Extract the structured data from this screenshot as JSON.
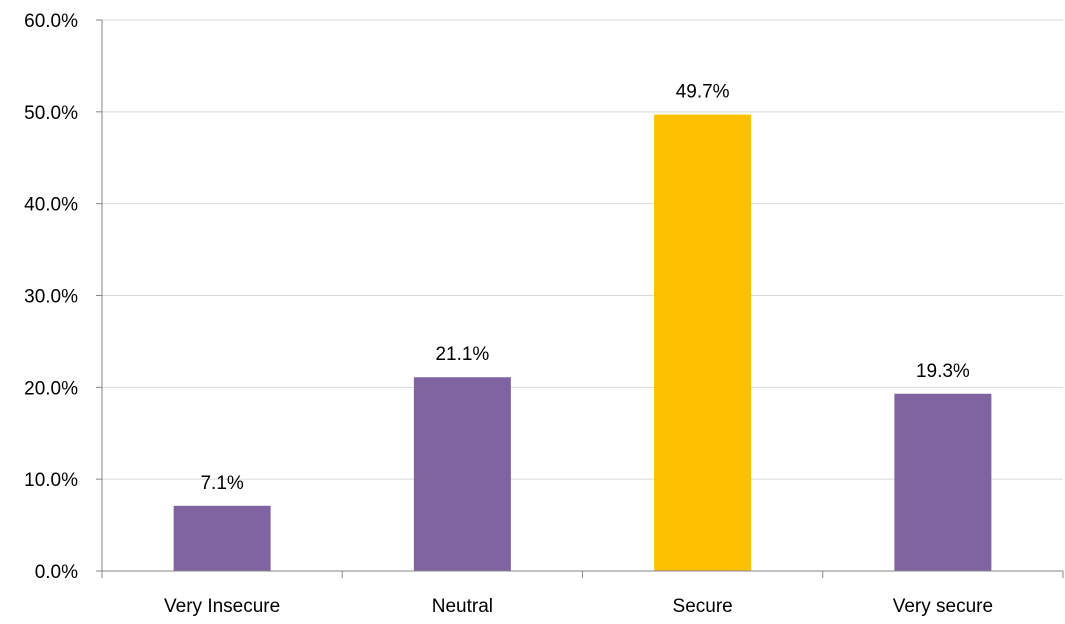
{
  "chart_data": {
    "type": "bar",
    "title": "",
    "xlabel": "",
    "ylabel": "",
    "categories": [
      "Very Insecure",
      "Neutral",
      "Secure",
      "Very secure"
    ],
    "values": [
      7.1,
      21.1,
      49.7,
      19.3
    ],
    "data_labels": [
      "7.1%",
      "21.1%",
      "49.7%",
      "19.3%"
    ],
    "y_ticks": [
      0,
      10,
      20,
      30,
      40,
      50,
      60
    ],
    "y_tick_labels": [
      "0.0%",
      "10.0%",
      "20.0%",
      "30.0%",
      "40.0%",
      "50.0%",
      "60.0%"
    ],
    "ylim": [
      0,
      60
    ],
    "grid": true,
    "legend": "none",
    "colors": {
      "default_bar": "#8064A2",
      "highlight_bar": "#FFC000",
      "gridline": "#D9D9D9",
      "axis": "#868686"
    },
    "highlight_category": "Secure"
  }
}
